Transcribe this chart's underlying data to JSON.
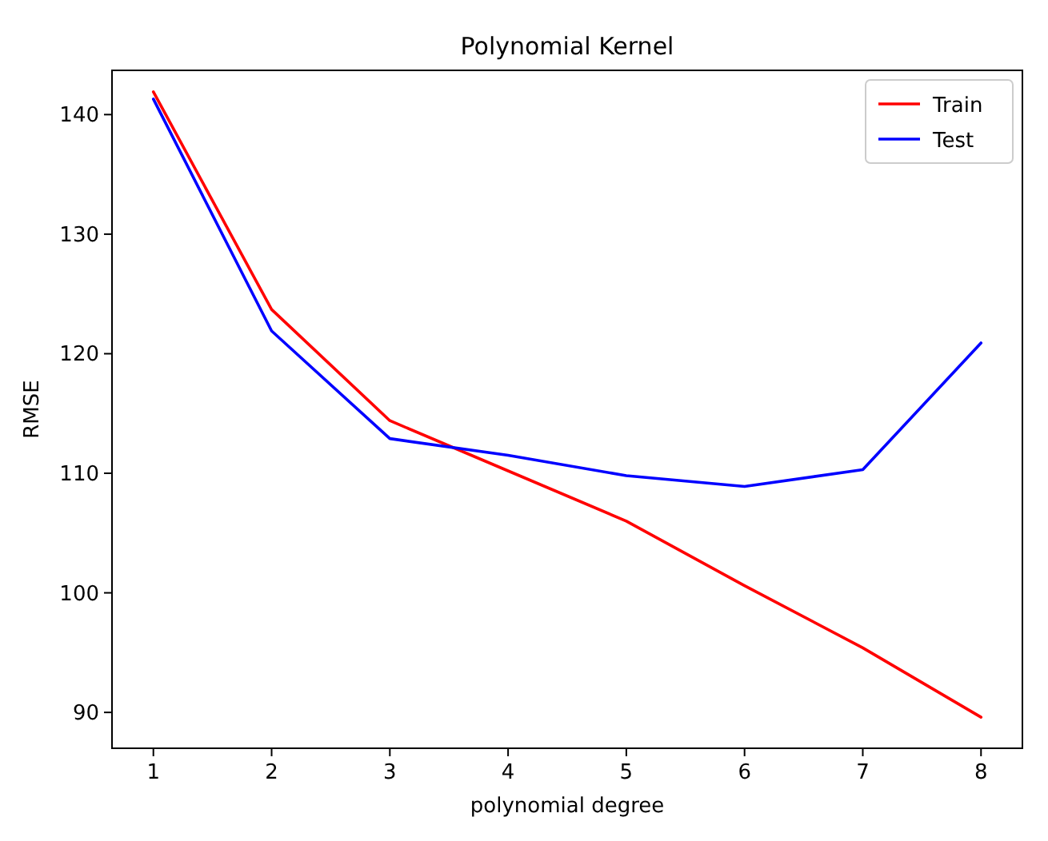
{
  "chart_data": {
    "type": "line",
    "title": "Polynomial Kernel",
    "xlabel": "polynomial degree",
    "ylabel": "RMSE",
    "x": [
      1,
      2,
      3,
      4,
      5,
      6,
      7,
      8
    ],
    "series": [
      {
        "name": "Train",
        "color": "#ff0000",
        "values": [
          141.9,
          123.7,
          114.4,
          110.2,
          106.0,
          100.6,
          95.4,
          89.6
        ]
      },
      {
        "name": "Test",
        "color": "#0000ff",
        "values": [
          141.3,
          121.9,
          112.9,
          111.5,
          109.8,
          108.9,
          110.3,
          120.9
        ]
      }
    ],
    "xlim": [
      0.65,
      8.35
    ],
    "xticks": [
      1,
      2,
      3,
      4,
      5,
      6,
      7,
      8
    ],
    "ylim": [
      87,
      143.7
    ],
    "yticks": [
      90,
      100,
      110,
      120,
      130,
      140
    ],
    "grid": false,
    "legend": "top right",
    "marker": "none",
    "line_style": "solid"
  }
}
